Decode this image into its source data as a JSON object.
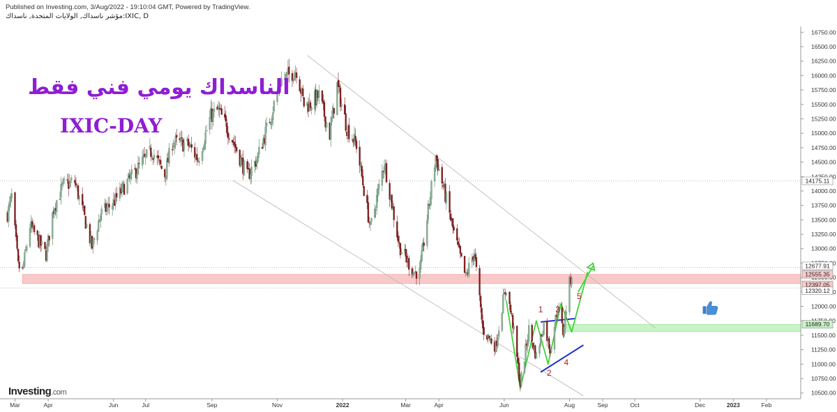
{
  "header": {
    "published": "Published on Investing.com, 3/Aug/2022 - 19:10:04 GMT, Powered by TradingView.",
    "symbol_line": "مؤشر ناسداك, الولايات المتحدة, ناسداك:IXIC, D"
  },
  "overlay": {
    "arabic_title": "الناسداك يومي فني فقط",
    "english_title": "IXIC-DAY",
    "thumbs_icon": "thumbs-up-icon"
  },
  "logo": {
    "brand": "Investing",
    "suffix": ".com"
  },
  "colors": {
    "up_candle": "#8fb39b",
    "down_candle": "#7a1f1f",
    "resistance_zone": "#f9c9c9",
    "support_zone": "#c9f2c6",
    "blue_line": "#1d2fd1",
    "green_path": "#3ed43a",
    "wave_label": "#b01c1c",
    "title_purple": "#8f1dd4"
  },
  "chart_data": {
    "type": "candlestick",
    "y_axis": {
      "ticks": [
        "16750.00",
        "16500.00",
        "16250.00",
        "16000.00",
        "15750.00",
        "15500.00",
        "15250.00",
        "15000.00",
        "14750.00",
        "14500.00",
        "14250.00",
        "14000.00",
        "13750.00",
        "13500.00",
        "13250.00",
        "13000.00",
        "12750.00",
        "12500.00",
        "12250.00",
        "12000.00",
        "11750.00",
        "11500.00",
        "11250.00",
        "11000.00",
        "10750.00",
        "10500.00"
      ],
      "range": [
        10400,
        16850
      ]
    },
    "price_labels": [
      "14175.11",
      "12677.91",
      "12555.35",
      "12397.05",
      "12320.12",
      "11689.70"
    ],
    "x_axis": {
      "ticks": [
        "Mar",
        "Apr",
        "Jun",
        "Jul",
        "Sep",
        "Nov",
        "2022",
        "Mar",
        "Apr",
        "Jun",
        "Aug",
        "Sep",
        "Oct",
        "Dec",
        "2023",
        "Feb"
      ],
      "range": [
        "2021-02-15",
        "2023-03-05"
      ]
    },
    "path_points": [
      [
        "2021-02-22",
        13600
      ],
      [
        "2021-02-26",
        13900
      ],
      [
        "2021-03-04",
        12700
      ],
      [
        "2021-03-08",
        12610
      ],
      [
        "2021-03-15",
        13400
      ],
      [
        "2021-03-30",
        12900
      ],
      [
        "2021-04-06",
        13700
      ],
      [
        "2021-04-15",
        14100
      ],
      [
        "2021-04-26",
        14150
      ],
      [
        "2021-05-04",
        13600
      ],
      [
        "2021-05-12",
        13030
      ],
      [
        "2021-05-20",
        13600
      ],
      [
        "2021-06-01",
        13800
      ],
      [
        "2021-06-14",
        14150
      ],
      [
        "2021-06-28",
        14500
      ],
      [
        "2021-07-07",
        14700
      ],
      [
        "2021-07-19",
        14280
      ],
      [
        "2021-07-26",
        14850
      ],
      [
        "2021-08-10",
        14800
      ],
      [
        "2021-08-19",
        14550
      ],
      [
        "2021-08-31",
        15300
      ],
      [
        "2021-09-07",
        15400
      ],
      [
        "2021-09-20",
        14900
      ],
      [
        "2021-10-04",
        14250
      ],
      [
        "2021-10-13",
        14550
      ],
      [
        "2021-10-26",
        15300
      ],
      [
        "2021-11-04",
        15900
      ],
      [
        "2021-11-19",
        16100
      ],
      [
        "2021-11-26",
        15500
      ],
      [
        "2021-12-01",
        15500
      ],
      [
        "2021-12-10",
        15650
      ],
      [
        "2021-12-20",
        14980
      ],
      [
        "2021-12-27",
        15830
      ],
      [
        "2022-01-05",
        15100
      ],
      [
        "2022-01-14",
        14800
      ],
      [
        "2022-01-27",
        13350
      ],
      [
        "2022-02-09",
        14500
      ],
      [
        "2022-02-23",
        13050
      ],
      [
        "2022-03-08",
        12600
      ],
      [
        "2022-03-14",
        12580
      ],
      [
        "2022-03-29",
        14600
      ],
      [
        "2022-04-06",
        14000
      ],
      [
        "2022-04-14",
        13350
      ],
      [
        "2022-04-26",
        12500
      ],
      [
        "2022-05-04",
        12950
      ],
      [
        "2022-05-12",
        11600
      ],
      [
        "2022-05-24",
        11300
      ],
      [
        "2022-05-31",
        12100
      ],
      [
        "2022-06-03",
        12320
      ],
      [
        "2022-06-09",
        11700
      ],
      [
        "2022-06-16",
        10650
      ],
      [
        "2022-06-24",
        11600
      ],
      [
        "2022-07-01",
        11130
      ],
      [
        "2022-07-08",
        11700
      ],
      [
        "2022-07-14",
        11260
      ],
      [
        "2022-07-21",
        12000
      ],
      [
        "2022-07-26",
        11550
      ],
      [
        "2022-08-01",
        12400
      ],
      [
        "2022-08-03",
        12560
      ]
    ],
    "zones": [
      {
        "name": "resistance",
        "from": 12397.05,
        "to": 12555.35,
        "start": "2021-03-08"
      },
      {
        "name": "support",
        "from": 11560,
        "to": 11689.7,
        "start": "2022-07-25"
      }
    ],
    "horizontal_lines": [
      14175.11,
      12320.12,
      12677.91
    ],
    "trendlines": [
      {
        "name": "upper-channel",
        "points": [
          [
            "2021-11-29",
            16350
          ],
          [
            "2022-10-20",
            11630
          ]
        ]
      },
      {
        "name": "lower-channel",
        "points": [
          [
            "2021-09-21",
            14180
          ],
          [
            "2022-08-14",
            10450
          ]
        ]
      },
      {
        "name": "blue-top",
        "points": [
          [
            "2022-07-05",
            11730
          ],
          [
            "2022-08-07",
            11790
          ]
        ]
      },
      {
        "name": "blue-bottom",
        "points": [
          [
            "2022-07-05",
            10860
          ],
          [
            "2022-08-14",
            11330
          ]
        ]
      },
      {
        "name": "green-path",
        "points": [
          [
            "2022-06-03",
            12100
          ],
          [
            "2022-06-16",
            10580
          ],
          [
            "2022-07-01",
            11750
          ],
          [
            "2022-07-12",
            11000
          ],
          [
            "2022-07-24",
            12050
          ],
          [
            "2022-08-03",
            11560
          ],
          [
            "2022-08-18",
            12600
          ]
        ]
      },
      {
        "name": "green-arrow",
        "points": [
          [
            "2022-08-09",
            12250
          ],
          [
            "2022-08-23",
            12700
          ]
        ]
      }
    ],
    "wave_labels": [
      {
        "label": "1",
        "date": "2022-07-05",
        "value": 11900
      },
      {
        "label": "2",
        "date": "2022-07-13",
        "value": 10800
      },
      {
        "label": "3",
        "date": "2022-07-21",
        "value": 11900
      },
      {
        "label": "4",
        "date": "2022-07-29",
        "value": 10980
      },
      {
        "label": "5",
        "date": "2022-08-10",
        "value": 12130
      }
    ],
    "thumbs_up_marker": {
      "date": "2022-12-10",
      "value": 11980
    }
  }
}
